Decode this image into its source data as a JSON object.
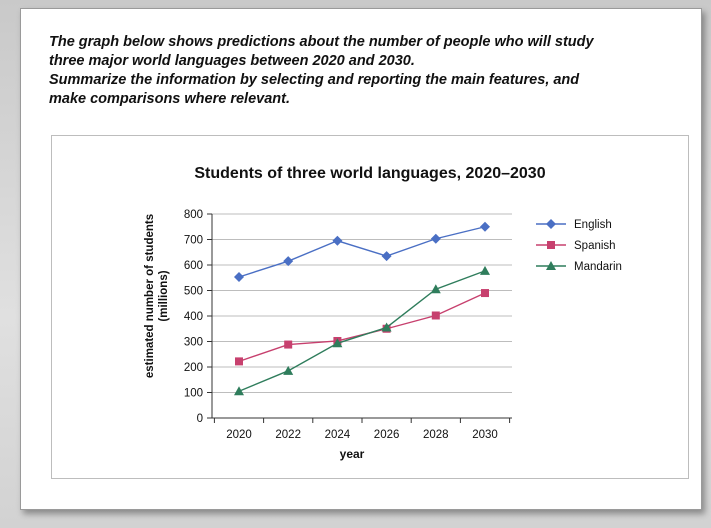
{
  "task": {
    "line1": "The graph below shows predictions about the number of people who will study",
    "line2": "three major world languages between 2020 and 2030.",
    "line3": "Summarize the information by selecting and reporting the main features, and",
    "line4": "make comparisons where relevant."
  },
  "chart_data": {
    "type": "line",
    "title": "Students of three world languages, 2020–2030",
    "xlabel": "year",
    "ylabel_line1": "estimated number of students",
    "ylabel_line2": "(millions)",
    "x": [
      "2020",
      "2022",
      "2024",
      "2026",
      "2028",
      "2030"
    ],
    "ylim": [
      0,
      800
    ],
    "yticks": [
      0,
      100,
      200,
      300,
      400,
      500,
      600,
      700,
      800
    ],
    "grid": "horizontal",
    "legend": "right",
    "series": [
      {
        "name": "English",
        "marker": "diamond",
        "color": "#4a6fc4",
        "values": [
          553,
          615,
          695,
          635,
          703,
          750
        ]
      },
      {
        "name": "Spanish",
        "marker": "square",
        "color": "#c7406e",
        "values": [
          222,
          288,
          302,
          350,
          402,
          490
        ]
      },
      {
        "name": "Mandarin",
        "marker": "triangle",
        "color": "#2f7d5c",
        "values": [
          105,
          185,
          293,
          355,
          505,
          577
        ]
      }
    ]
  }
}
